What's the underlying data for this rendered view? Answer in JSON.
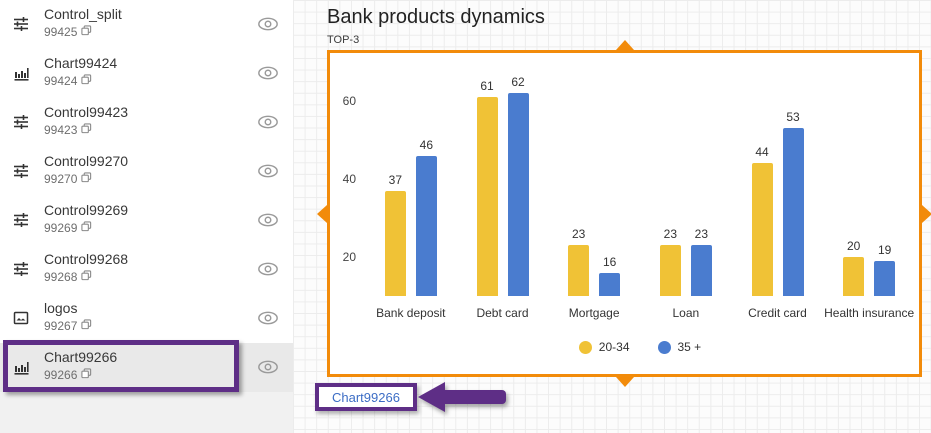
{
  "sidebar": {
    "items": [
      {
        "name": "Control_split",
        "id": "99425",
        "icon": "sliders",
        "selected": false
      },
      {
        "name": "Chart99424",
        "id": "99424",
        "icon": "bar-chart",
        "selected": false
      },
      {
        "name": "Control99423",
        "id": "99423",
        "icon": "sliders",
        "selected": false
      },
      {
        "name": "Control99270",
        "id": "99270",
        "icon": "sliders",
        "selected": false
      },
      {
        "name": "Control99269",
        "id": "99269",
        "icon": "sliders",
        "selected": false
      },
      {
        "name": "Control99268",
        "id": "99268",
        "icon": "sliders",
        "selected": false
      },
      {
        "name": "logos",
        "id": "99267",
        "icon": "image",
        "selected": false
      },
      {
        "name": "Chart99266",
        "id": "99266",
        "icon": "bar-chart",
        "selected": true
      }
    ]
  },
  "widget": {
    "title": "Bank products dynamics",
    "subtitle": "TOP-3",
    "footer_label": "Chart99266"
  },
  "chart_data": {
    "type": "bar",
    "title": "Bank products dynamics",
    "subtitle": "TOP-3",
    "categories": [
      "Bank deposit",
      "Debt card",
      "Mortgage",
      "Loan",
      "Credit card",
      "Health insurance"
    ],
    "series": [
      {
        "name": "20-34",
        "color": "#F0C236",
        "values": [
          37,
          61,
          23,
          23,
          44,
          20
        ]
      },
      {
        "name": "35 +",
        "color": "#4A7CCF",
        "values": [
          46,
          62,
          16,
          23,
          53,
          19
        ]
      }
    ],
    "yticks": [
      20,
      40,
      60
    ],
    "ylim": [
      10,
      73
    ],
    "grid": false,
    "legend_position": "bottom",
    "bar_labels": true
  },
  "colors": {
    "selection_border": "#f28b0a",
    "annotation_purple": "#5e2e86",
    "link_blue": "#3c6dc5",
    "selected_row_bg": "#e9e9e9"
  }
}
